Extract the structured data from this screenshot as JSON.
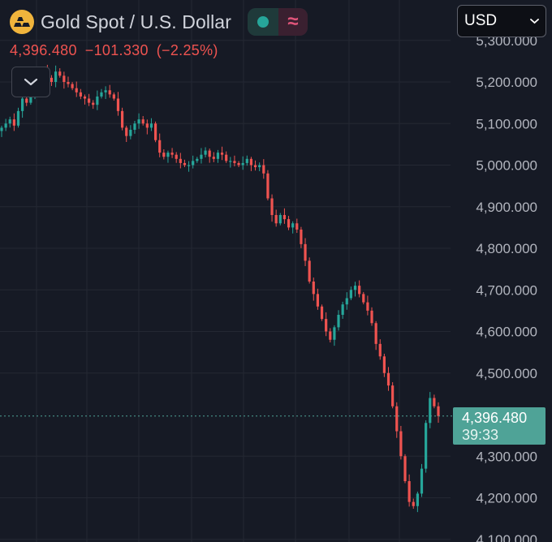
{
  "header": {
    "title": "Gold Spot / U.S. Dollar",
    "indicator_symbol": "≈"
  },
  "quote": {
    "last": "4,396.480",
    "change": "−101.330",
    "change_pct": "(−2.25%)"
  },
  "currency_select": {
    "value": "USD"
  },
  "last_price_label": {
    "value": "4,396.480",
    "countdown": "39:33"
  },
  "colors": {
    "background": "#161a25",
    "up": "#26a69a",
    "down": "#ef5350",
    "last_price": "#4fa397",
    "grid": "#242833"
  },
  "icons": [
    "gold-bars-icon",
    "status-dot-icon",
    "approx-icon",
    "chevron-down-icon"
  ],
  "chart_data": {
    "type": "candlestick",
    "y_axis": {
      "min": 4080,
      "max": 5300,
      "ticks": [
        5300,
        5200,
        5100,
        5000,
        4900,
        4800,
        4700,
        4600,
        4500,
        4300,
        4200,
        4100
      ],
      "tick_labels": [
        "5,300.000",
        "5,200.000",
        "5,100.000",
        "5,000.000",
        "4,900.000",
        "4,800.000",
        "4,700.000",
        "4,600.000",
        "4,500.000",
        "4,300.000",
        "4,200.000",
        "4,100.000"
      ],
      "side": "right"
    },
    "grid": true,
    "last_price": 4396.48,
    "price_path": [
      5090,
      5100,
      5110,
      5095,
      5130,
      5160,
      5150,
      5170,
      5175,
      5190,
      5230,
      5210,
      5200,
      5225,
      5215,
      5200,
      5195,
      5185,
      5175,
      5165,
      5160,
      5150,
      5145,
      5165,
      5175,
      5180,
      5170,
      5160,
      5130,
      5090,
      5070,
      5085,
      5100,
      5110,
      5100,
      5090,
      5100,
      5060,
      5030,
      5020,
      5030,
      5025,
      5015,
      5005,
      5000,
      5000,
      5010,
      5015,
      5025,
      5035,
      5020,
      5015,
      5030,
      5025,
      5010,
      5010,
      5005,
      5000,
      5005,
      5015,
      5000,
      4995,
      5000,
      4980,
      4920,
      4880,
      4860,
      4880,
      4870,
      4850,
      4860,
      4845,
      4810,
      4770,
      4720,
      4690,
      4660,
      4630,
      4600,
      4580,
      4610,
      4640,
      4665,
      4680,
      4700,
      4710,
      4690,
      4670,
      4650,
      4620,
      4570,
      4540,
      4500,
      4470,
      4420,
      4360,
      4300,
      4240,
      4190,
      4180,
      4210,
      4270,
      4380,
      4440,
      4420,
      4396.48
    ]
  }
}
